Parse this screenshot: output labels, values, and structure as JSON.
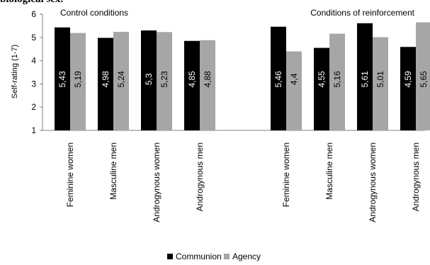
{
  "page_title_fragment": "biological sex.",
  "chart_data": {
    "type": "bar",
    "ylabel": "Self-rating (1-7)",
    "ylim": [
      1,
      6
    ],
    "yticks": [
      1,
      2,
      3,
      4,
      5,
      6
    ],
    "grid": false,
    "legend_position": "bottom-center",
    "groups": [
      {
        "label": "Control conditions",
        "categories": [
          "Feminine women",
          "Masculine men",
          "Androgynous women",
          "Androgynous men"
        ],
        "series": [
          {
            "name": "Communion",
            "values": [
              5.43,
              4.98,
              5.3,
              4.85
            ],
            "labels": [
              "5,43",
              "4,98",
              "5,3",
              "4,85"
            ]
          },
          {
            "name": "Agency",
            "values": [
              5.19,
              5.24,
              5.23,
              4.88
            ],
            "labels": [
              "5,19",
              "5,24",
              "5,23",
              "4,88"
            ]
          }
        ]
      },
      {
        "label": "Conditions of reinforcement",
        "categories": [
          "Feminine women",
          "Masculine men",
          "Androgynous women",
          "Androgynous men"
        ],
        "series": [
          {
            "name": "Communion",
            "values": [
              5.46,
              4.55,
              5.61,
              4.59
            ],
            "labels": [
              "5,46",
              "4,55",
              "5,61",
              "4,59"
            ]
          },
          {
            "name": "Agency",
            "values": [
              4.4,
              5.16,
              5.01,
              5.65
            ],
            "labels": [
              "4,4",
              "5,16",
              "5,01",
              "5,65"
            ]
          }
        ]
      }
    ],
    "legend": [
      {
        "name": "Communion",
        "color": "#000000"
      },
      {
        "name": "Agency",
        "color": "#a6a6a6"
      }
    ]
  },
  "colors": {
    "communion": "#000000",
    "agency": "#a6a6a6",
    "label_on_dark": "#ffffff",
    "label_on_light": "#000000",
    "axis": "#808080"
  }
}
